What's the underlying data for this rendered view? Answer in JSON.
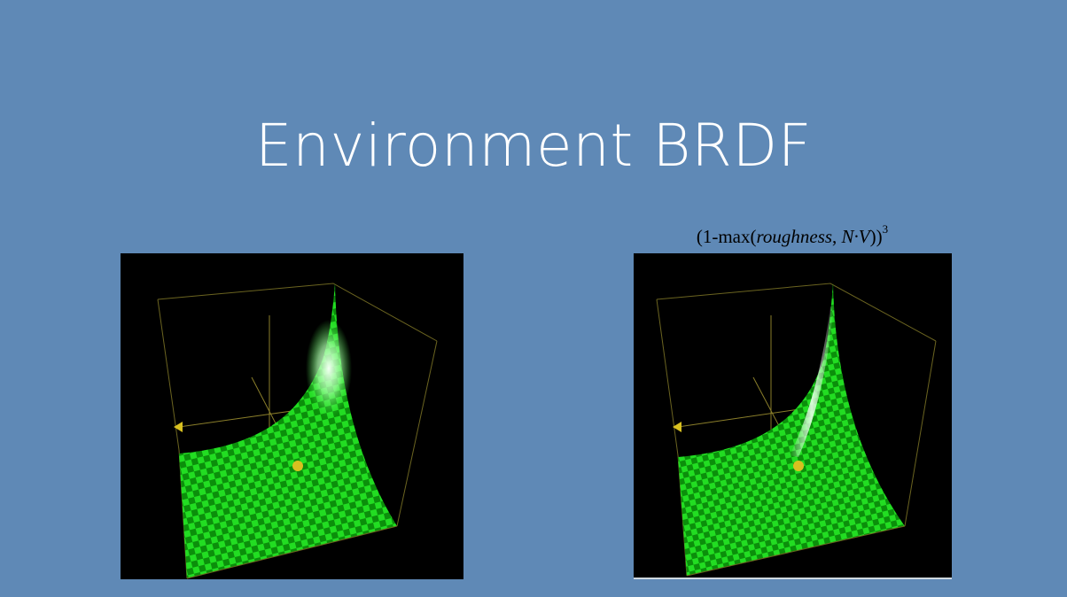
{
  "slide": {
    "title": "Environment BRDF",
    "background_color": "#5f89b6"
  },
  "right_panel": {
    "formula": {
      "prefix": "(1-max(",
      "var1": "roughness",
      "sep": ", ",
      "var2": "N·V",
      "suffix": "))",
      "exponent": "3"
    }
  },
  "colors": {
    "surface_green": "#22dd22",
    "checker_dark": "#0a8f0a",
    "axis_yellow": "#d8c020",
    "box_line": "#6b6420"
  }
}
